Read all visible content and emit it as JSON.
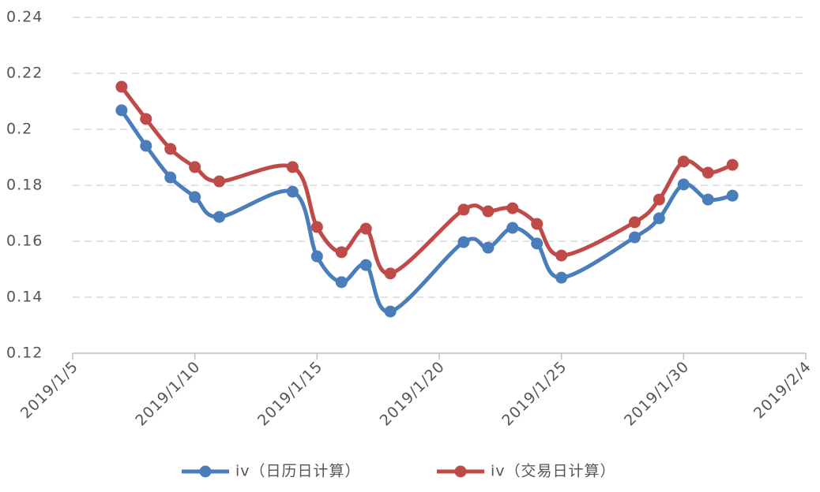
{
  "chart_data": {
    "type": "line",
    "x": [
      "2019/1/7",
      "2019/1/8",
      "2019/1/9",
      "2019/1/10",
      "2019/1/11",
      "2019/1/14",
      "2019/1/15",
      "2019/1/16",
      "2019/1/17",
      "2019/1/18",
      "2019/1/21",
      "2019/1/22",
      "2019/1/23",
      "2019/1/24",
      "2019/1/25",
      "2019/1/28",
      "2019/1/29",
      "2019/1/30",
      "2019/1/31",
      "2019/2/1"
    ],
    "series": [
      {
        "name": "iv（日历日计算）",
        "color": "#4a7ebb",
        "values": [
          0.2068,
          0.1941,
          0.1828,
          0.1758,
          0.1687,
          0.1777,
          0.1546,
          0.1454,
          0.1515,
          0.1349,
          0.1597,
          0.1577,
          0.1648,
          0.1592,
          0.147,
          0.1614,
          0.1682,
          0.1803,
          0.1749,
          0.1763
        ]
      },
      {
        "name": "iv（交易日计算）",
        "color": "#be4b48",
        "values": [
          0.2152,
          0.2037,
          0.193,
          0.1865,
          0.1814,
          0.1865,
          0.1651,
          0.1561,
          0.1645,
          0.1485,
          0.1713,
          0.1707,
          0.1718,
          0.1662,
          0.1549,
          0.1668,
          0.1749,
          0.1885,
          0.1845,
          0.1873
        ]
      }
    ],
    "xlim": [
      "2019/1/5",
      "2019/2/4"
    ],
    "xticks": [
      "2019/1/5",
      "2019/1/10",
      "2019/1/15",
      "2019/1/20",
      "2019/1/25",
      "2019/1/30",
      "2019/2/4"
    ],
    "ylim": [
      0.12,
      0.24
    ],
    "yticks": [
      0.12,
      0.14,
      0.16,
      0.18,
      0.2,
      0.22,
      0.24
    ],
    "grid": true,
    "legend": "bottom"
  }
}
